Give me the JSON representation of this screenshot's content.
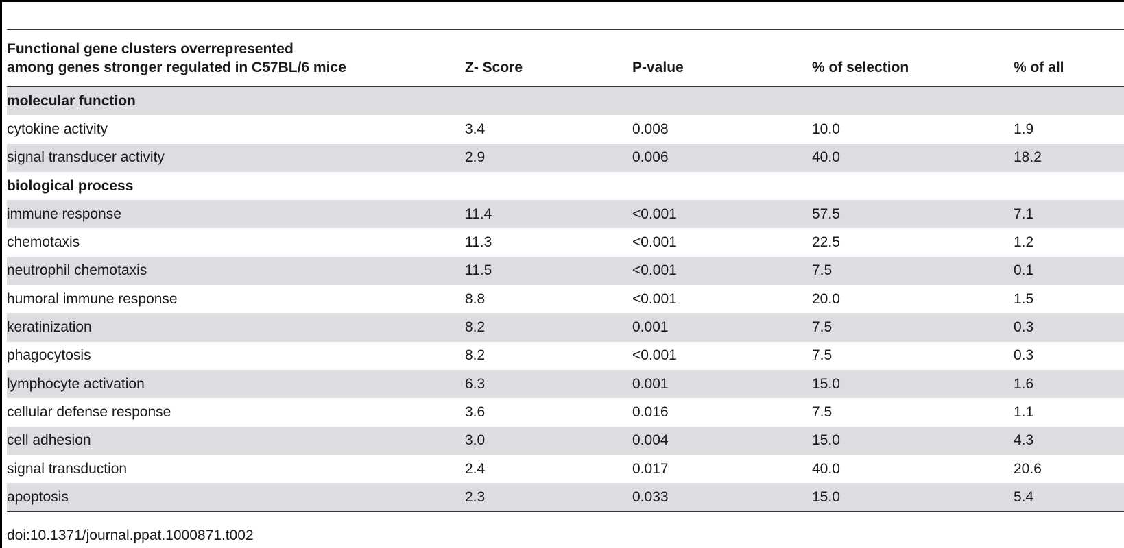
{
  "table": {
    "headers": [
      "Functional gene clusters overrepresented among genes stronger regulated in C57BL/6 mice",
      "Z- Score",
      "P-value",
      "% of selection",
      "% of all"
    ],
    "header_line1": "Functional gene clusters overrepresented",
    "header_line2": "among genes stronger regulated in C57BL/6 mice",
    "rows": [
      {
        "type": "section",
        "label": "molecular function"
      },
      {
        "type": "data",
        "label": "cytokine activity",
        "z": "3.4",
        "p": "0.008",
        "sel": "10.0",
        "all": "1.9"
      },
      {
        "type": "data",
        "label": "signal transducer activity",
        "z": "2.9",
        "p": "0.006",
        "sel": "40.0",
        "all": "18.2"
      },
      {
        "type": "section",
        "label": "biological process"
      },
      {
        "type": "data",
        "label": "immune response",
        "z": "11.4",
        "p": "<0.001",
        "sel": "57.5",
        "all": "7.1"
      },
      {
        "type": "data",
        "label": "chemotaxis",
        "z": "11.3",
        "p": "<0.001",
        "sel": "22.5",
        "all": "1.2"
      },
      {
        "type": "data",
        "label": "neutrophil chemotaxis",
        "z": "11.5",
        "p": "<0.001",
        "sel": "7.5",
        "all": "0.1"
      },
      {
        "type": "data",
        "label": "humoral immune response",
        "z": "8.8",
        "p": "<0.001",
        "sel": "20.0",
        "all": "1.5"
      },
      {
        "type": "data",
        "label": "keratinization",
        "z": "8.2",
        "p": "0.001",
        "sel": "7.5",
        "all": "0.3"
      },
      {
        "type": "data",
        "label": "phagocytosis",
        "z": "8.2",
        "p": "<0.001",
        "sel": "7.5",
        "all": "0.3"
      },
      {
        "type": "data",
        "label": "lymphocyte activation",
        "z": "6.3",
        "p": "0.001",
        "sel": "15.0",
        "all": "1.6"
      },
      {
        "type": "data",
        "label": "cellular defense response",
        "z": "3.6",
        "p": "0.016",
        "sel": "7.5",
        "all": "1.1"
      },
      {
        "type": "data",
        "label": "cell adhesion",
        "z": "3.0",
        "p": "0.004",
        "sel": "15.0",
        "all": "4.3"
      },
      {
        "type": "data",
        "label": "signal transduction",
        "z": "2.4",
        "p": "0.017",
        "sel": "40.0",
        "all": "20.6"
      },
      {
        "type": "data",
        "label": "apoptosis",
        "z": "2.3",
        "p": "0.033",
        "sel": "15.0",
        "all": "5.4"
      }
    ]
  },
  "footer": {
    "doi": "doi:10.1371/journal.ppat.1000871.t002"
  },
  "colors": {
    "shade": "#dcdde0",
    "rule": "#333333"
  }
}
